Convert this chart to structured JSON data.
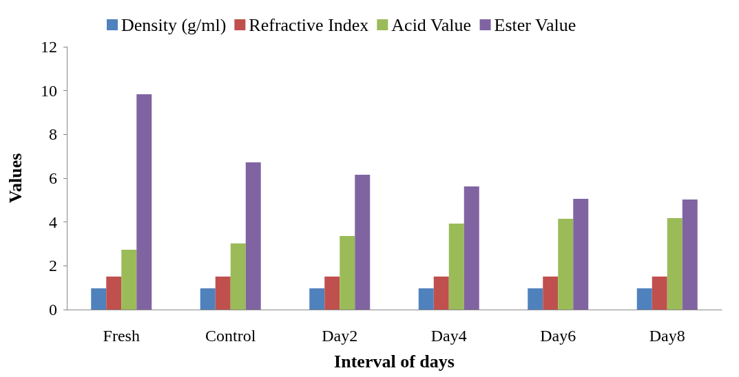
{
  "chart_data": {
    "type": "bar",
    "xlabel": "Interval of days",
    "ylabel": "Values",
    "categories": [
      "Fresh",
      "Control",
      "Day2",
      "Day4",
      "Day6",
      "Day8"
    ],
    "series": [
      {
        "name": "Density (g/ml)",
        "color": "#4f81bd",
        "values": [
          0.97,
          0.97,
          0.97,
          0.97,
          0.97,
          0.97
        ]
      },
      {
        "name": "Refractive Index",
        "color": "#c0504d",
        "values": [
          1.51,
          1.51,
          1.51,
          1.51,
          1.51,
          1.51
        ]
      },
      {
        "name": "Acid Value",
        "color": "#9bbb59",
        "values": [
          2.73,
          3.02,
          3.36,
          3.93,
          4.15,
          4.18
        ]
      },
      {
        "name": "Ester Value",
        "color": "#8064a2",
        "values": [
          9.83,
          6.72,
          6.16,
          5.62,
          5.06,
          5.03
        ]
      }
    ],
    "ylim": [
      0,
      12
    ],
    "yticks": [
      0,
      2,
      4,
      6,
      8,
      10,
      12
    ],
    "grid": false,
    "legend": "top"
  }
}
